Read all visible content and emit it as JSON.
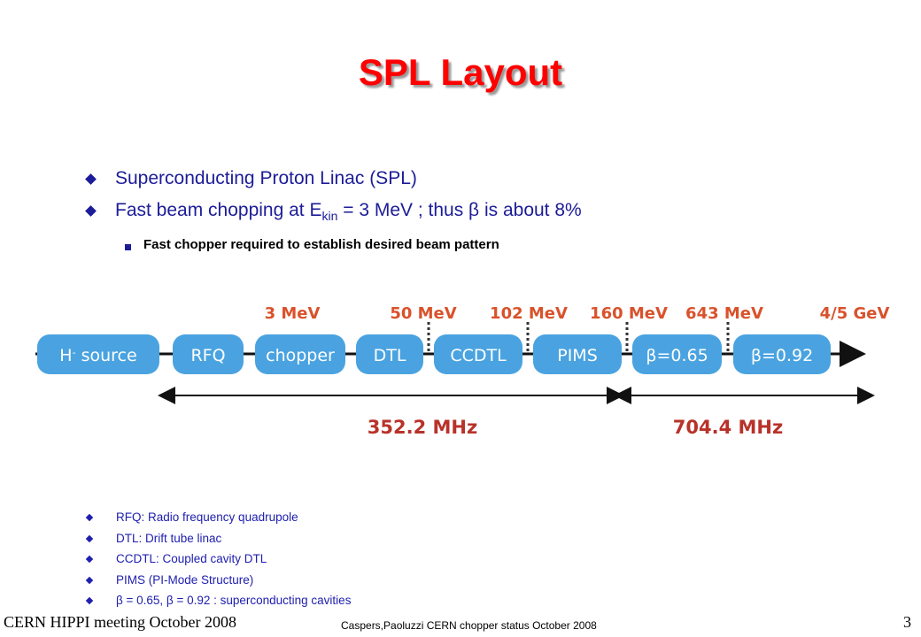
{
  "title": "SPL Layout",
  "bullets": [
    {
      "text": "Superconducting Proton Linac (SPL)"
    },
    {
      "before": "Fast beam chopping at E",
      "sub": "kin",
      "after": " = 3 MeV ; thus β is about 8%"
    }
  ],
  "sub_bullets": [
    "Fast chopper required to establish desired beam pattern"
  ],
  "diagram": {
    "energies": [
      "3 MeV",
      "50 MeV",
      "102 MeV",
      "160 MeV",
      "643 MeV",
      "4/5 GeV"
    ],
    "source": {
      "main": "H",
      "sup": "-",
      "rest": " source"
    },
    "stages": [
      "RFQ",
      "chopper",
      "DTL",
      "CCDTL",
      "PIMS",
      "β=0.65",
      "β=0.92"
    ],
    "frequencies": [
      "352.2 MHz",
      "704.4 MHz"
    ]
  },
  "glossary": [
    "RFQ: Radio frequency quadrupole",
    "DTL: Drift tube linac",
    "CCDTL: Coupled cavity DTL",
    "PIMS (PI-Mode Structure)",
    "β = 0.65, β = 0.92 : superconducting cavities"
  ],
  "footer": {
    "left": "CERN HIPPI meeting October 2008",
    "center": "Caspers,Paoluzzi CERN chopper status October 2008",
    "page": "3"
  }
}
